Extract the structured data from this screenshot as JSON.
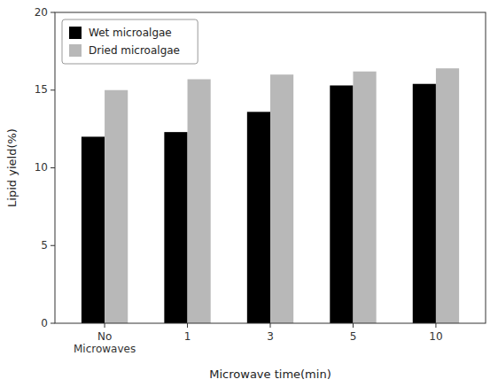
{
  "chart_data": {
    "type": "bar",
    "categories": [
      "No\nMicrowaves",
      "1",
      "3",
      "5",
      "10"
    ],
    "series": [
      {
        "name": "Wet microalgae",
        "color": "#000000",
        "values": [
          12.0,
          12.3,
          13.6,
          15.3,
          15.4
        ]
      },
      {
        "name": "Dried microalgae",
        "color": "#b8b8b8",
        "values": [
          15.0,
          15.7,
          16.0,
          16.2,
          16.4
        ]
      }
    ],
    "xlabel": "Microwave time(min)",
    "ylabel": "Lipid yield(%)",
    "ylim": [
      0,
      20
    ],
    "yticks": [
      0,
      5,
      10,
      15,
      20
    ],
    "legend": "upper left",
    "grid": false
  }
}
